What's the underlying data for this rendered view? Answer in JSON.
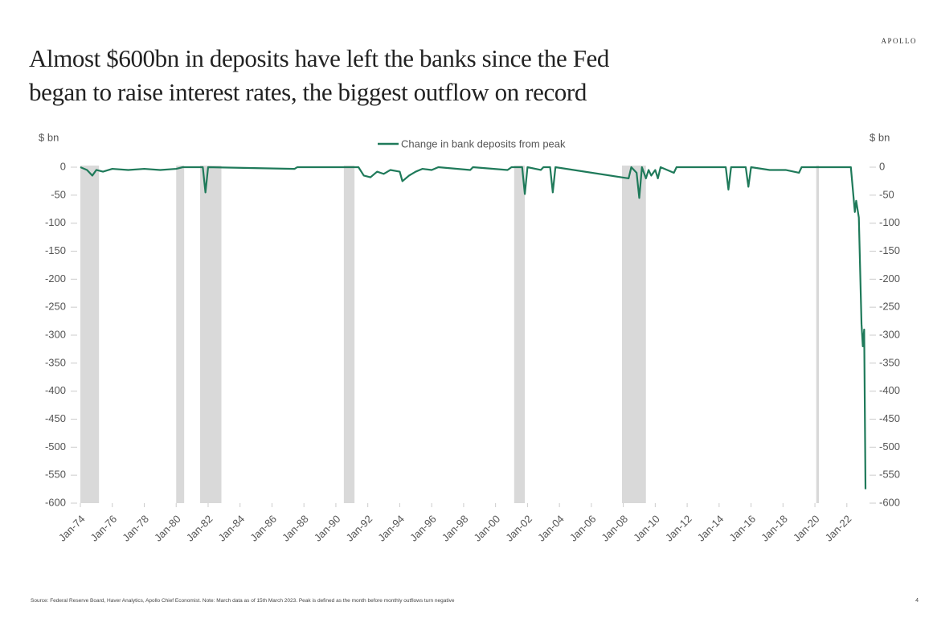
{
  "logo": "APOLLO",
  "chart_data": {
    "type": "line",
    "title": [
      "Almost $600bn in deposits have left the banks since the Fed",
      "began to raise interest rates, the biggest outflow on record"
    ],
    "y_label": "$ bn",
    "y2_label": "$ bn",
    "x": [
      "1974-01",
      "1974-06",
      "1974-10",
      "1975-01",
      "1975-06",
      "1976-01",
      "1977-01",
      "1978-01",
      "1979-01",
      "1980-01",
      "1980-06",
      "1981-09",
      "1981-11",
      "1982-01",
      "1987-06",
      "1987-08",
      "1991-06",
      "1991-10",
      "1992-03",
      "1992-08",
      "1993-01",
      "1993-06",
      "1994-01",
      "1994-03",
      "1994-08",
      "1995-01",
      "1995-06",
      "1996-01",
      "1996-06",
      "1998-06",
      "1998-08",
      "2000-10",
      "2001-01",
      "2001-09",
      "2001-11",
      "2002-01",
      "2002-11",
      "2003-01",
      "2003-06",
      "2003-08",
      "2003-10",
      "2008-05",
      "2008-07",
      "2008-11",
      "2009-01",
      "2009-03",
      "2009-06",
      "2009-08",
      "2009-10",
      "2010-01",
      "2010-03",
      "2010-05",
      "2011-03",
      "2011-05",
      "2014-06",
      "2014-08",
      "2014-10",
      "2015-09",
      "2015-11",
      "2016-01",
      "2017-03",
      "2018-03",
      "2019-01",
      "2019-03",
      "2022-04",
      "2022-07",
      "2022-08",
      "2022-10",
      "2022-12",
      "2023-01",
      "2023-02",
      "2023-03"
    ],
    "series": [
      {
        "name": "Change in bank deposits from peak",
        "color": "#1f7a5a",
        "values": [
          0,
          -5,
          -15,
          -5,
          -8,
          -3,
          -5,
          -3,
          -5,
          -3,
          0,
          0,
          -45,
          0,
          -3,
          0,
          0,
          -15,
          -18,
          -8,
          -12,
          -5,
          -8,
          -25,
          -15,
          -8,
          -3,
          -5,
          0,
          -5,
          0,
          -5,
          0,
          0,
          -48,
          0,
          -5,
          0,
          0,
          -45,
          0,
          -20,
          0,
          -10,
          -55,
          0,
          -20,
          -5,
          -15,
          -5,
          -20,
          0,
          -10,
          0,
          0,
          -40,
          0,
          0,
          -35,
          0,
          -5,
          -5,
          -10,
          0,
          0,
          -80,
          -60,
          -90,
          -280,
          -320,
          -290,
          -575
        ]
      }
    ],
    "recessions": [
      [
        "1973-11",
        "1975-03"
      ],
      [
        "1980-01",
        "1980-07"
      ],
      [
        "1981-07",
        "1982-11"
      ],
      [
        "1990-07",
        "1991-03"
      ],
      [
        "2001-03",
        "2001-11"
      ],
      [
        "2007-12",
        "2009-06"
      ],
      [
        "2020-02",
        "2020-04"
      ]
    ],
    "recession_color": "#d9d9d9",
    "xlim": [
      "1974-01",
      "2023-03"
    ],
    "xticks": [
      {
        "value": "1974-01",
        "label": "Jan-74"
      },
      {
        "value": "1976-01",
        "label": "Jan-76"
      },
      {
        "value": "1978-01",
        "label": "Jan-78"
      },
      {
        "value": "1980-01",
        "label": "Jan-80"
      },
      {
        "value": "1982-01",
        "label": "Jan-82"
      },
      {
        "value": "1984-01",
        "label": "Jan-84"
      },
      {
        "value": "1986-01",
        "label": "Jan-86"
      },
      {
        "value": "1988-01",
        "label": "Jan-88"
      },
      {
        "value": "1990-01",
        "label": "Jan-90"
      },
      {
        "value": "1992-01",
        "label": "Jan-92"
      },
      {
        "value": "1994-01",
        "label": "Jan-94"
      },
      {
        "value": "1996-01",
        "label": "Jan-96"
      },
      {
        "value": "1998-01",
        "label": "Jan-98"
      },
      {
        "value": "2000-01",
        "label": "Jan-00"
      },
      {
        "value": "2002-01",
        "label": "Jan-02"
      },
      {
        "value": "2004-01",
        "label": "Jan-04"
      },
      {
        "value": "2006-01",
        "label": "Jan-06"
      },
      {
        "value": "2008-01",
        "label": "Jan-08"
      },
      {
        "value": "2010-01",
        "label": "Jan-10"
      },
      {
        "value": "2012-01",
        "label": "Jan-12"
      },
      {
        "value": "2014-01",
        "label": "Jan-14"
      },
      {
        "value": "2016-01",
        "label": "Jan-16"
      },
      {
        "value": "2018-01",
        "label": "Jan-18"
      },
      {
        "value": "2020-01",
        "label": "Jan-20"
      },
      {
        "value": "2022-01",
        "label": "Jan-22"
      }
    ],
    "ylim": [
      -600,
      0
    ],
    "yticks": [
      0,
      -50,
      -100,
      -150,
      -200,
      -250,
      -300,
      -350,
      -400,
      -450,
      -500,
      -550,
      -600
    ],
    "legend": "top-center",
    "grid": false
  },
  "source": "Source: Federal Reserve Board, Haver Analytics, Apollo Chief Economist. Note: March data as of 15th March 2023. Peak is defined as the month before monthly outflows turn negative",
  "page_number": "4"
}
